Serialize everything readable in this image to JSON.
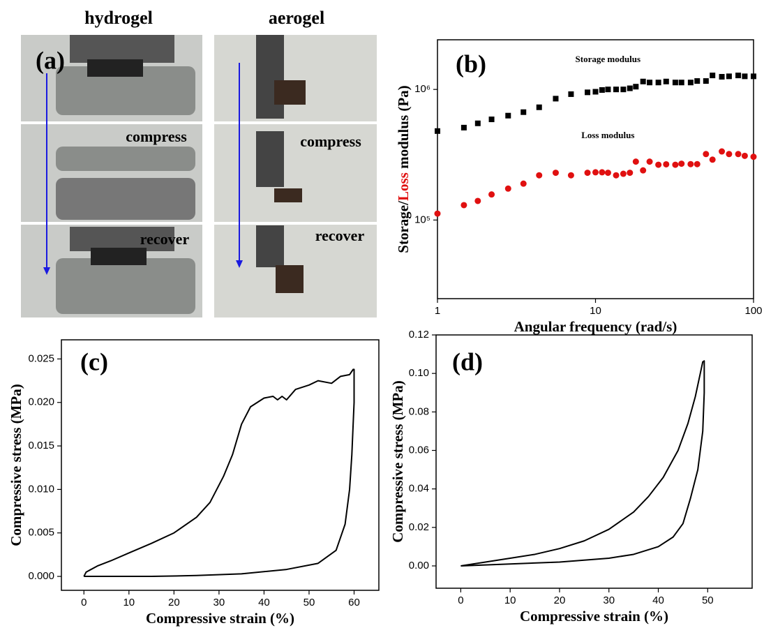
{
  "photo_panel": {
    "panel_label": "(a)",
    "columns": [
      "hydrogel",
      "aerogel"
    ],
    "steps": [
      "compress",
      "recover"
    ]
  },
  "chart_data": [
    {
      "type": "scatter",
      "panel_label": "(b)",
      "xlabel": "Angular frequency (rad/s)",
      "ylabel_parts": [
        {
          "text": "Storage/",
          "color": "#000000"
        },
        {
          "text": "Loss",
          "color": "#e01010"
        },
        {
          "text": " modulus (Pa)",
          "color": "#000000"
        }
      ],
      "xscale": "log",
      "yscale": "log",
      "xlim": [
        1,
        100
      ],
      "ylim": [
        25000,
        2400000
      ],
      "xticks": [
        1,
        10,
        100
      ],
      "yticks": [
        {
          "value": 100000,
          "label": "10⁵"
        },
        {
          "value": 1000000,
          "label": "10⁶"
        }
      ],
      "series": [
        {
          "name": "Storage modulus",
          "color": "#000000",
          "marker": "square",
          "x": [
            1,
            1.47,
            1.8,
            2.2,
            2.8,
            3.5,
            4.4,
            5.6,
            7,
            8.9,
            10,
            11,
            12,
            13.5,
            15,
            16.5,
            18,
            20,
            22,
            25,
            28,
            32,
            35,
            40,
            44,
            50,
            55,
            63,
            70,
            80,
            88,
            100
          ],
          "values": [
            480000,
            510000,
            550000,
            590000,
            630000,
            670000,
            730000,
            850000,
            920000,
            950000,
            960000,
            990000,
            1000000,
            1000000,
            1000000,
            1020000,
            1050000,
            1150000,
            1130000,
            1130000,
            1150000,
            1130000,
            1130000,
            1130000,
            1160000,
            1160000,
            1280000,
            1250000,
            1260000,
            1280000,
            1260000,
            1260000
          ]
        },
        {
          "name": "Loss modulus",
          "color": "#e01010",
          "marker": "circle",
          "x": [
            1,
            1.47,
            1.8,
            2.2,
            2.8,
            3.5,
            4.4,
            5.6,
            7,
            8.9,
            10,
            11,
            12,
            13.5,
            15,
            16.5,
            18,
            20,
            22,
            25,
            28,
            32,
            35,
            40,
            44,
            50,
            55,
            63,
            70,
            80,
            88,
            100
          ],
          "values": [
            112000,
            130000,
            140000,
            157000,
            174000,
            190000,
            220000,
            230000,
            220000,
            230000,
            232000,
            232000,
            230000,
            220000,
            226000,
            230000,
            280000,
            240000,
            280000,
            265000,
            267000,
            265000,
            270000,
            268000,
            268000,
            320000,
            290000,
            335000,
            320000,
            320000,
            310000,
            305000
          ]
        }
      ]
    },
    {
      "type": "line",
      "panel_label": "(c)",
      "xlabel": "Compressive strain (%)",
      "ylabel": "Compressive stress (MPa)",
      "xlim": [
        -5,
        65.5
      ],
      "ylim": [
        -0.0016,
        0.0272
      ],
      "xticks": [
        0,
        10,
        20,
        30,
        40,
        50,
        60
      ],
      "yticks": [
        {
          "value": 0,
          "label": "0.000"
        },
        {
          "value": 0.005,
          "label": "0.005"
        },
        {
          "value": 0.01,
          "label": "0.010"
        },
        {
          "value": 0.015,
          "label": "0.015"
        },
        {
          "value": 0.02,
          "label": "0.020"
        },
        {
          "value": 0.025,
          "label": "0.025"
        }
      ],
      "series": [
        {
          "color": "#000000",
          "x": [
            0,
            0.5,
            3,
            6,
            10,
            15,
            20,
            25,
            28,
            31,
            33,
            35,
            37,
            40,
            42,
            43,
            44,
            45,
            47,
            50,
            52,
            55,
            57,
            59,
            59.8,
            60,
            60,
            59.5,
            59,
            58,
            56,
            52,
            45,
            35,
            25,
            15,
            5,
            0
          ],
          "values": [
            0,
            0.0005,
            0.0012,
            0.0018,
            0.0027,
            0.0038,
            0.005,
            0.0068,
            0.0085,
            0.0115,
            0.014,
            0.0175,
            0.0195,
            0.0205,
            0.0207,
            0.0203,
            0.0207,
            0.0203,
            0.0215,
            0.022,
            0.0225,
            0.0222,
            0.023,
            0.0232,
            0.0238,
            0.0238,
            0.02,
            0.014,
            0.01,
            0.006,
            0.003,
            0.0015,
            0.0008,
            0.0003,
            0.0001,
            0,
            0,
            0
          ]
        }
      ]
    },
    {
      "type": "line",
      "panel_label": "(d)",
      "xlabel": "Compressive strain (%)",
      "ylabel": "Compressive stress (MPa)",
      "xlim": [
        -5,
        59
      ],
      "ylim": [
        -0.0116,
        0.12
      ],
      "xticks": [
        0,
        10,
        20,
        30,
        40,
        50
      ],
      "yticks": [
        {
          "value": 0,
          "label": "0.00"
        },
        {
          "value": 0.02,
          "label": "0.02"
        },
        {
          "value": 0.04,
          "label": "0.04"
        },
        {
          "value": 0.06,
          "label": "0.06"
        },
        {
          "value": 0.08,
          "label": "0.08"
        },
        {
          "value": 0.1,
          "label": "0.10"
        },
        {
          "value": 0.12,
          "label": "0.12"
        }
      ],
      "series": [
        {
          "color": "#000000",
          "x": [
            0,
            5,
            10,
            15,
            20,
            25,
            30,
            35,
            38,
            41,
            44,
            46,
            47.5,
            48.5,
            49,
            49.3,
            49.3,
            49,
            48,
            46.5,
            45,
            43,
            40,
            35,
            30,
            20,
            10,
            0
          ],
          "values": [
            0,
            0.002,
            0.004,
            0.006,
            0.009,
            0.013,
            0.019,
            0.028,
            0.036,
            0.046,
            0.06,
            0.074,
            0.088,
            0.1,
            0.106,
            0.1065,
            0.09,
            0.07,
            0.05,
            0.035,
            0.022,
            0.015,
            0.01,
            0.006,
            0.004,
            0.002,
            0.001,
            0
          ]
        }
      ]
    }
  ]
}
